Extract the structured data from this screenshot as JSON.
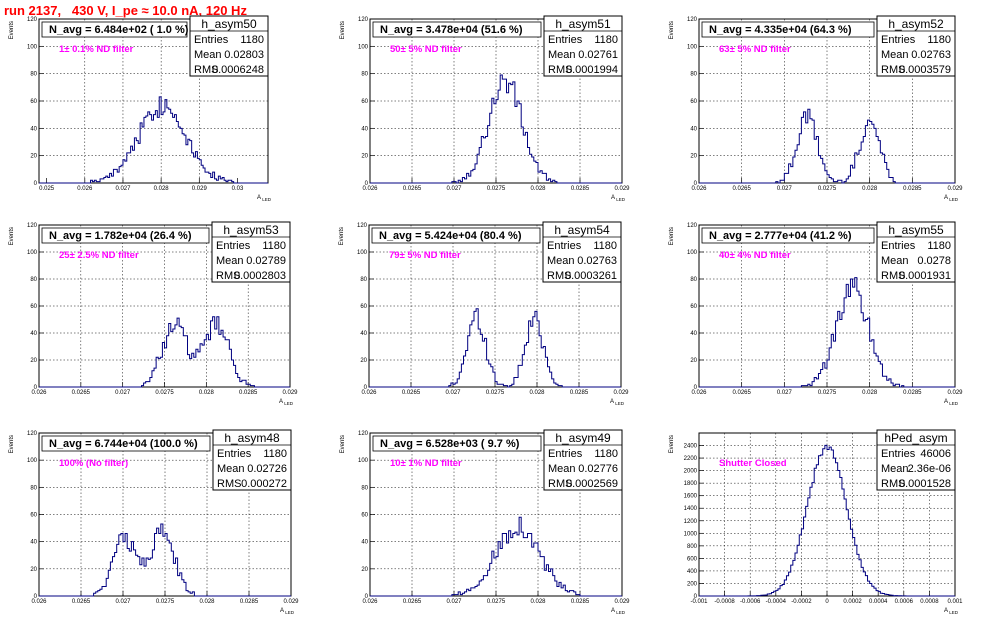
{
  "title": "run 2137,   430 V, I_pe ≈ 10.0 nA, 120 Hz",
  "colors": {
    "title": "#ff0000",
    "histogram": "#000080",
    "filter_label": "#ff00ff"
  },
  "chart_data": [
    {
      "type": "histogram",
      "name": "h_asym50",
      "annotation": "N_avg = 6.484e+02 ( 1.0 %)",
      "filter": "1± 0.1% ND filter",
      "stats": [
        [
          "Entries",
          "1180"
        ],
        [
          "Mean",
          "0.02803"
        ],
        [
          "RMS",
          "0.0006248"
        ]
      ],
      "xlabel": "A_{LED}",
      "ylabel": "Events",
      "xlim": [
        0.0248,
        0.0308
      ],
      "ylim": [
        0,
        120
      ],
      "xticks": [
        "0.025",
        "0.026",
        "0.027",
        "0.028",
        "0.029",
        "0.03"
      ],
      "yticks": [
        "0",
        "20",
        "40",
        "60",
        "80",
        "100",
        "120"
      ],
      "shape": {
        "peaks": [
          [
            0.02803,
            0.00063,
            57
          ]
        ]
      }
    },
    {
      "type": "histogram",
      "name": "h_asym51",
      "annotation": "N_avg = 3.478e+04 (51.6 %)",
      "filter": "50± 5% ND filter",
      "stats": [
        [
          "Entries",
          "1180"
        ],
        [
          "Mean",
          "0.02761"
        ],
        [
          "RMS",
          "0.0001994"
        ]
      ],
      "xlabel": "A_{LED}",
      "ylabel": "Events",
      "xlim": [
        0.026,
        0.029
      ],
      "ylim": [
        0,
        120
      ],
      "xticks": [
        "0.026",
        "0.0265",
        "0.027",
        "0.0275",
        "0.028",
        "0.0285",
        "0.029"
      ],
      "yticks": [
        "0",
        "20",
        "40",
        "60",
        "80",
        "100",
        "120"
      ],
      "shape": {
        "peaks": [
          [
            0.02761,
            0.0002,
            75
          ]
        ]
      }
    },
    {
      "type": "histogram",
      "name": "h_asym52",
      "annotation": "N_avg = 4.335e+04 (64.3 %)",
      "filter": "63± 5% ND filter",
      "stats": [
        [
          "Entries",
          "1180"
        ],
        [
          "Mean",
          "0.02763"
        ],
        [
          "RMS",
          "0.0003579"
        ]
      ],
      "xlabel": "A_{LED}",
      "ylabel": "Events",
      "xlim": [
        0.026,
        0.029
      ],
      "ylim": [
        0,
        120
      ],
      "xticks": [
        "0.026",
        "0.0265",
        "0.027",
        "0.0275",
        "0.028",
        "0.0285",
        "0.029"
      ],
      "yticks": [
        "0",
        "20",
        "40",
        "60",
        "80",
        "100",
        "120"
      ],
      "shape": {
        "peaks": [
          [
            0.02727,
            0.00012,
            48
          ],
          [
            0.028,
            0.00012,
            45
          ]
        ]
      }
    },
    {
      "type": "histogram",
      "name": "h_asym53",
      "annotation": "N_avg = 1.782e+04 (26.4 %)",
      "filter": "25± 2.5% ND filter",
      "stats": [
        [
          "Entries",
          "1180"
        ],
        [
          "Mean",
          "0.02789"
        ],
        [
          "RMS",
          "0.0002803"
        ]
      ],
      "xlabel": "A_{LED}",
      "ylabel": "Events",
      "xlim": [
        0.026,
        0.029
      ],
      "ylim": [
        0,
        120
      ],
      "xticks": [
        "0.026",
        "0.0265",
        "0.027",
        "0.0275",
        "0.028",
        "0.0285",
        "0.029"
      ],
      "yticks": [
        "0",
        "20",
        "40",
        "60",
        "80",
        "100",
        "120"
      ],
      "shape": {
        "peaks": [
          [
            0.02762,
            0.00015,
            46
          ],
          [
            0.02812,
            0.00015,
            46
          ]
        ]
      }
    },
    {
      "type": "histogram",
      "name": "h_asym54",
      "annotation": "N_avg = 5.424e+04 (80.4 %)",
      "filter": "79± 5% ND filter",
      "stats": [
        [
          "Entries",
          "1180"
        ],
        [
          "Mean",
          "0.02763"
        ],
        [
          "RMS",
          "0.0003261"
        ]
      ],
      "xlabel": "A_{LED}",
      "ylabel": "Events",
      "xlim": [
        0.026,
        0.029
      ],
      "ylim": [
        0,
        120
      ],
      "xticks": [
        "0.026",
        "0.0265",
        "0.027",
        "0.0275",
        "0.028",
        "0.0285",
        "0.029"
      ],
      "yticks": [
        "0",
        "20",
        "40",
        "60",
        "80",
        "100",
        "120"
      ],
      "shape": {
        "peaks": [
          [
            0.02728,
            0.00011,
            52
          ],
          [
            0.02797,
            0.00011,
            50
          ]
        ]
      }
    },
    {
      "type": "histogram",
      "name": "h_asym55",
      "annotation": "N_avg = 2.777e+04 (41.2 %)",
      "filter": "40± 4% ND filter",
      "stats": [
        [
          "Entries",
          "1180"
        ],
        [
          "Mean",
          "0.0278"
        ],
        [
          "RMS",
          "0.0001931"
        ]
      ],
      "xlabel": "A_{LED}",
      "ylabel": "Events",
      "xlim": [
        0.026,
        0.029
      ],
      "ylim": [
        0,
        120
      ],
      "xticks": [
        "0.026",
        "0.0265",
        "0.027",
        "0.0275",
        "0.028",
        "0.0285",
        "0.029"
      ],
      "yticks": [
        "0",
        "20",
        "40",
        "60",
        "80",
        "100",
        "120"
      ],
      "shape": {
        "peaks": [
          [
            0.0278,
            0.00019,
            73
          ]
        ]
      }
    },
    {
      "type": "histogram",
      "name": "h_asym48",
      "annotation": "N_avg = 6.744e+04 (100.0 %)",
      "filter": "100% (No filter)",
      "stats": [
        [
          "Entries",
          "1180"
        ],
        [
          "Mean",
          "0.02726"
        ],
        [
          "RMS",
          "0.000272"
        ]
      ],
      "xlabel": "A_{LED}",
      "ylabel": "Events",
      "xlim": [
        0.026,
        0.029
      ],
      "ylim": [
        0,
        120
      ],
      "xticks": [
        "0.026",
        "0.0265",
        "0.027",
        "0.0275",
        "0.028",
        "0.0285",
        "0.029"
      ],
      "yticks": [
        "0",
        "20",
        "40",
        "60",
        "80",
        "100",
        "120"
      ],
      "shape": {
        "peaks": [
          [
            0.02702,
            0.00014,
            42
          ],
          [
            0.02747,
            0.00014,
            47
          ]
        ]
      }
    },
    {
      "type": "histogram",
      "name": "h_asym49",
      "annotation": "N_avg = 6.528e+03 ( 9.7 %)",
      "filter": "10± 1% ND filter",
      "stats": [
        [
          "Entries",
          "1180"
        ],
        [
          "Mean",
          "0.02776"
        ],
        [
          "RMS",
          "0.0002569"
        ]
      ],
      "xlabel": "A_{LED}",
      "ylabel": "Events",
      "xlim": [
        0.026,
        0.029
      ],
      "ylim": [
        0,
        120
      ],
      "xticks": [
        "0.026",
        "0.0265",
        "0.027",
        "0.0275",
        "0.028",
        "0.0285",
        "0.029"
      ],
      "yticks": [
        "0",
        "20",
        "40",
        "60",
        "80",
        "100",
        "120"
      ],
      "shape": {
        "peaks": [
          [
            0.02776,
            0.00026,
            52
          ]
        ]
      }
    },
    {
      "type": "histogram",
      "name": "hPed_asym",
      "annotation": "",
      "filter": "Shutter Closed",
      "stats": [
        [
          "Entries",
          "46006"
        ],
        [
          "Mean",
          "2.36e-06"
        ],
        [
          "RMS",
          "0.0001528"
        ]
      ],
      "xlabel": "A_{LED}",
      "ylabel": "Events",
      "xlim": [
        -0.001,
        0.001
      ],
      "ylim": [
        0,
        2600
      ],
      "xticks": [
        "-0.001",
        "-0.0008",
        "-0.0006",
        "-0.0004",
        "-0.0002",
        "0",
        "0.0002",
        "0.0004",
        "0.0006",
        "0.0008",
        "0.001"
      ],
      "yticks": [
        "0",
        "200",
        "400",
        "600",
        "800",
        "1000",
        "1200",
        "1400",
        "1600",
        "1800",
        "2000",
        "2200",
        "2400"
      ],
      "shape": {
        "peaks": [
          [
            0.0,
            0.000153,
            2380
          ]
        ]
      }
    }
  ]
}
